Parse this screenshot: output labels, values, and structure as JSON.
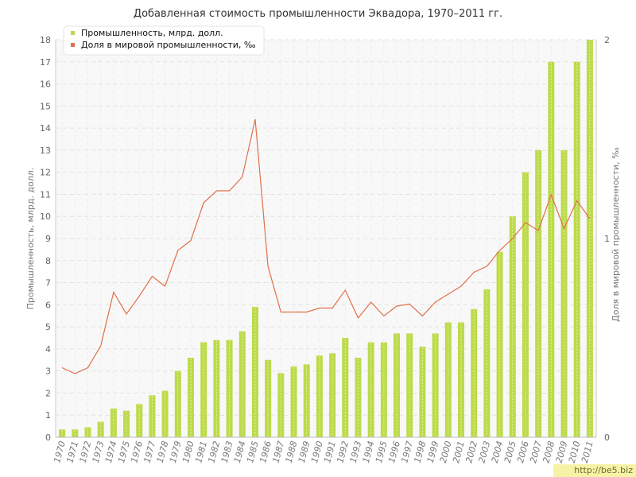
{
  "title": "Добавленная стоимость промышленности Эквадора, 1970–2011 гг.",
  "watermark": "http://be5.biz",
  "chart_data": {
    "type": "bar",
    "title": "Добавленная стоимость промышленности Эквадора, 1970–2011 гг.",
    "xlabel": "",
    "ylabel": "Промышленность, млрд. долл.",
    "y2label": "Доля в мировой промышленности, ‰",
    "ylim": [
      0,
      18
    ],
    "y2lim": [
      0,
      2
    ],
    "yticks": [
      "0",
      "1",
      "2",
      "3",
      "4",
      "5",
      "6",
      "7",
      "8",
      "9",
      "10",
      "11",
      "12",
      "13",
      "14",
      "15",
      "16",
      "17",
      "18"
    ],
    "y2ticks": [
      "0",
      "1",
      "2"
    ],
    "grid": true,
    "legend_position": "top-left",
    "categories": [
      "1970",
      "1971",
      "1972",
      "1973",
      "1974",
      "1975",
      "1976",
      "1977",
      "1978",
      "1979",
      "1980",
      "1981",
      "1982",
      "1983",
      "1984",
      "1985",
      "1986",
      "1987",
      "1988",
      "1989",
      "1990",
      "1991",
      "1992",
      "1993",
      "1994",
      "1995",
      "1996",
      "1997",
      "1998",
      "1999",
      "2000",
      "2001",
      "2002",
      "2003",
      "2004",
      "2005",
      "2006",
      "2007",
      "2008",
      "2009",
      "2010",
      "2011"
    ],
    "series": [
      {
        "name": "Промышленность, млрд. долл.",
        "type": "bar",
        "axis": "left",
        "color": "#bcdb4a",
        "values": [
          0.35,
          0.35,
          0.45,
          0.7,
          1.3,
          1.2,
          1.5,
          1.9,
          2.1,
          3.0,
          3.6,
          4.3,
          4.4,
          4.4,
          4.8,
          5.9,
          3.5,
          2.9,
          3.2,
          3.3,
          3.7,
          3.8,
          4.5,
          3.6,
          4.3,
          4.3,
          4.7,
          4.7,
          4.1,
          4.7,
          5.2,
          5.2,
          5.8,
          6.7,
          8.4,
          10.0,
          12.0,
          13.0,
          17.0,
          13.0,
          17.0,
          18.0
        ]
      },
      {
        "name": "Доля в мировой промышленности, ‰",
        "type": "line",
        "axis": "right",
        "color": "#e0704a",
        "values": [
          0.35,
          0.32,
          0.35,
          0.46,
          0.73,
          0.62,
          0.71,
          0.81,
          0.76,
          0.94,
          0.99,
          1.18,
          1.24,
          1.24,
          1.31,
          1.6,
          0.86,
          0.63,
          0.63,
          0.63,
          0.65,
          0.65,
          0.74,
          0.6,
          0.68,
          0.61,
          0.66,
          0.67,
          0.61,
          0.68,
          0.72,
          0.76,
          0.83,
          0.86,
          0.94,
          1.0,
          1.08,
          1.04,
          1.22,
          1.05,
          1.19,
          1.1
        ]
      }
    ]
  }
}
